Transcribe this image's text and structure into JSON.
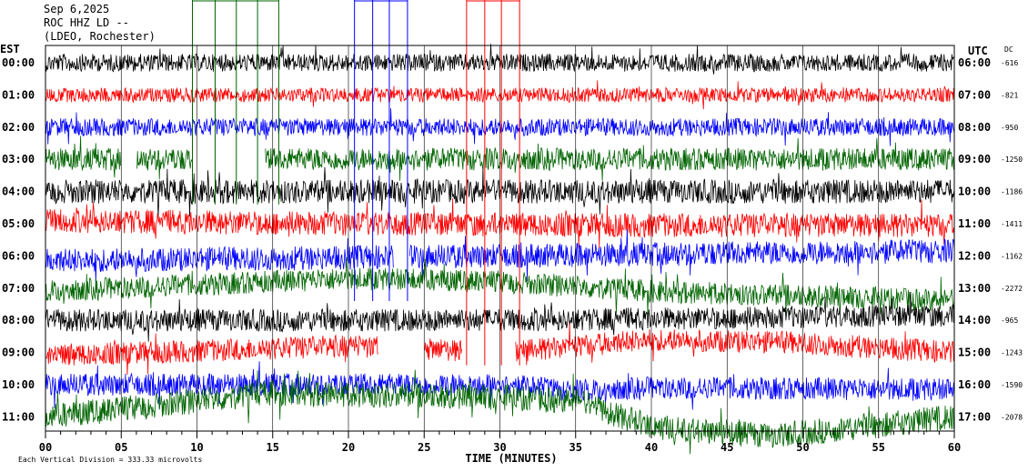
{
  "header": {
    "date": "Sep 6,2025",
    "station": "ROC HHZ LD --",
    "network": "(LDEO, Rochester)"
  },
  "left_axis_title": "EST",
  "right_axis_title": "UTC",
  "dc_title": "DC",
  "xlabel": "TIME (MINUTES)",
  "footer": "Each Vertical Division =  333.33 microvolts",
  "colors": {
    "black": "#000000",
    "red": "#ff0000",
    "blue": "#0000ff",
    "green": "#006400",
    "grid": "#000000"
  },
  "chart_data": {
    "type": "line",
    "title": "Sep 6,2025",
    "xlabel": "TIME (MINUTES)",
    "xlim": [
      0,
      60
    ],
    "x_ticks": [
      "00",
      "05",
      "10",
      "15",
      "20",
      "25",
      "30",
      "35",
      "40",
      "45",
      "50",
      "55",
      "60"
    ],
    "vertical_division_microvolts": 333.33,
    "rows": [
      {
        "est": "00:00",
        "utc": "06:00",
        "dc": "-616",
        "color": "black",
        "amplitude": 0.55,
        "trend": []
      },
      {
        "est": "01:00",
        "utc": "07:00",
        "dc": "-821",
        "color": "red",
        "amplitude": 0.45,
        "trend": []
      },
      {
        "est": "02:00",
        "utc": "08:00",
        "dc": "-950",
        "color": "blue",
        "amplitude": 0.55,
        "trend": []
      },
      {
        "est": "03:00",
        "utc": "09:00",
        "dc": "-1250",
        "color": "green",
        "amplitude": 0.7,
        "trend": [],
        "gaps": [
          [
            5,
            6
          ],
          [
            9.7,
            14.5
          ]
        ]
      },
      {
        "est": "04:00",
        "utc": "10:00",
        "dc": "-1186",
        "color": "black",
        "amplitude": 0.75,
        "trend": []
      },
      {
        "est": "05:00",
        "utc": "11:00",
        "dc": "-1411",
        "color": "red",
        "amplitude": 0.75,
        "trend": [
          [
            0,
            -0.2
          ],
          [
            20,
            0
          ],
          [
            40,
            0.1
          ],
          [
            60,
            0.1
          ]
        ]
      },
      {
        "est": "06:00",
        "utc": "12:00",
        "dc": "-1162",
        "color": "blue",
        "amplitude": 0.75,
        "trend": [
          [
            0,
            0.3
          ],
          [
            20,
            0.1
          ],
          [
            40,
            -0.1
          ],
          [
            60,
            -0.3
          ]
        ],
        "gaps": [
          [
            23,
            24
          ]
        ]
      },
      {
        "est": "07:00",
        "utc": "13:00",
        "dc": "-2272",
        "color": "green",
        "amplitude": 0.7,
        "trend": [
          [
            0,
            0.2
          ],
          [
            20,
            -0.6
          ],
          [
            30,
            -0.4
          ],
          [
            40,
            0.2
          ],
          [
            60,
            0.8
          ]
        ]
      },
      {
        "est": "08:00",
        "utc": "14:00",
        "dc": "-965",
        "color": "black",
        "amplitude": 0.7,
        "trend": [
          [
            0,
            0
          ],
          [
            30,
            0
          ],
          [
            60,
            -0.3
          ]
        ]
      },
      {
        "est": "09:00",
        "utc": "15:00",
        "dc": "-1243",
        "color": "red",
        "amplitude": 0.7,
        "trend": [
          [
            0,
            0.2
          ],
          [
            20,
            -0.4
          ],
          [
            30,
            0
          ],
          [
            40,
            -0.8
          ],
          [
            50,
            -0.6
          ],
          [
            60,
            0
          ]
        ],
        "gaps": [
          [
            22,
            25
          ],
          [
            27.5,
            31
          ]
        ]
      },
      {
        "est": "10:00",
        "utc": "16:00",
        "dc": "-1590",
        "color": "blue",
        "amplitude": 0.7,
        "trend": [
          [
            0,
            0
          ],
          [
            30,
            0
          ],
          [
            35,
            0.4
          ],
          [
            40,
            0.2
          ],
          [
            60,
            0.3
          ]
        ]
      },
      {
        "est": "11:00",
        "utc": "17:00",
        "dc": "-2078",
        "color": "green",
        "amplitude": 0.8,
        "trend": [
          [
            0,
            0
          ],
          [
            15,
            -1.5
          ],
          [
            30,
            -1.2
          ],
          [
            35,
            -1.0
          ],
          [
            40,
            0.6
          ],
          [
            48,
            1.2
          ],
          [
            60,
            0
          ]
        ]
      }
    ],
    "event_arrivals": [
      {
        "color": "green",
        "minutes": [
          9.7,
          11.2,
          12.6,
          14.0,
          15.4
        ],
        "start_row": 0,
        "end_row": 4
      },
      {
        "color": "blue",
        "minutes": [
          20.4,
          21.6,
          22.7,
          23.9
        ],
        "start_row": 0,
        "end_row": 7
      },
      {
        "color": "red",
        "minutes": [
          27.8,
          29.0,
          30.1,
          31.3
        ],
        "start_row": 0,
        "end_row": 9
      }
    ]
  }
}
